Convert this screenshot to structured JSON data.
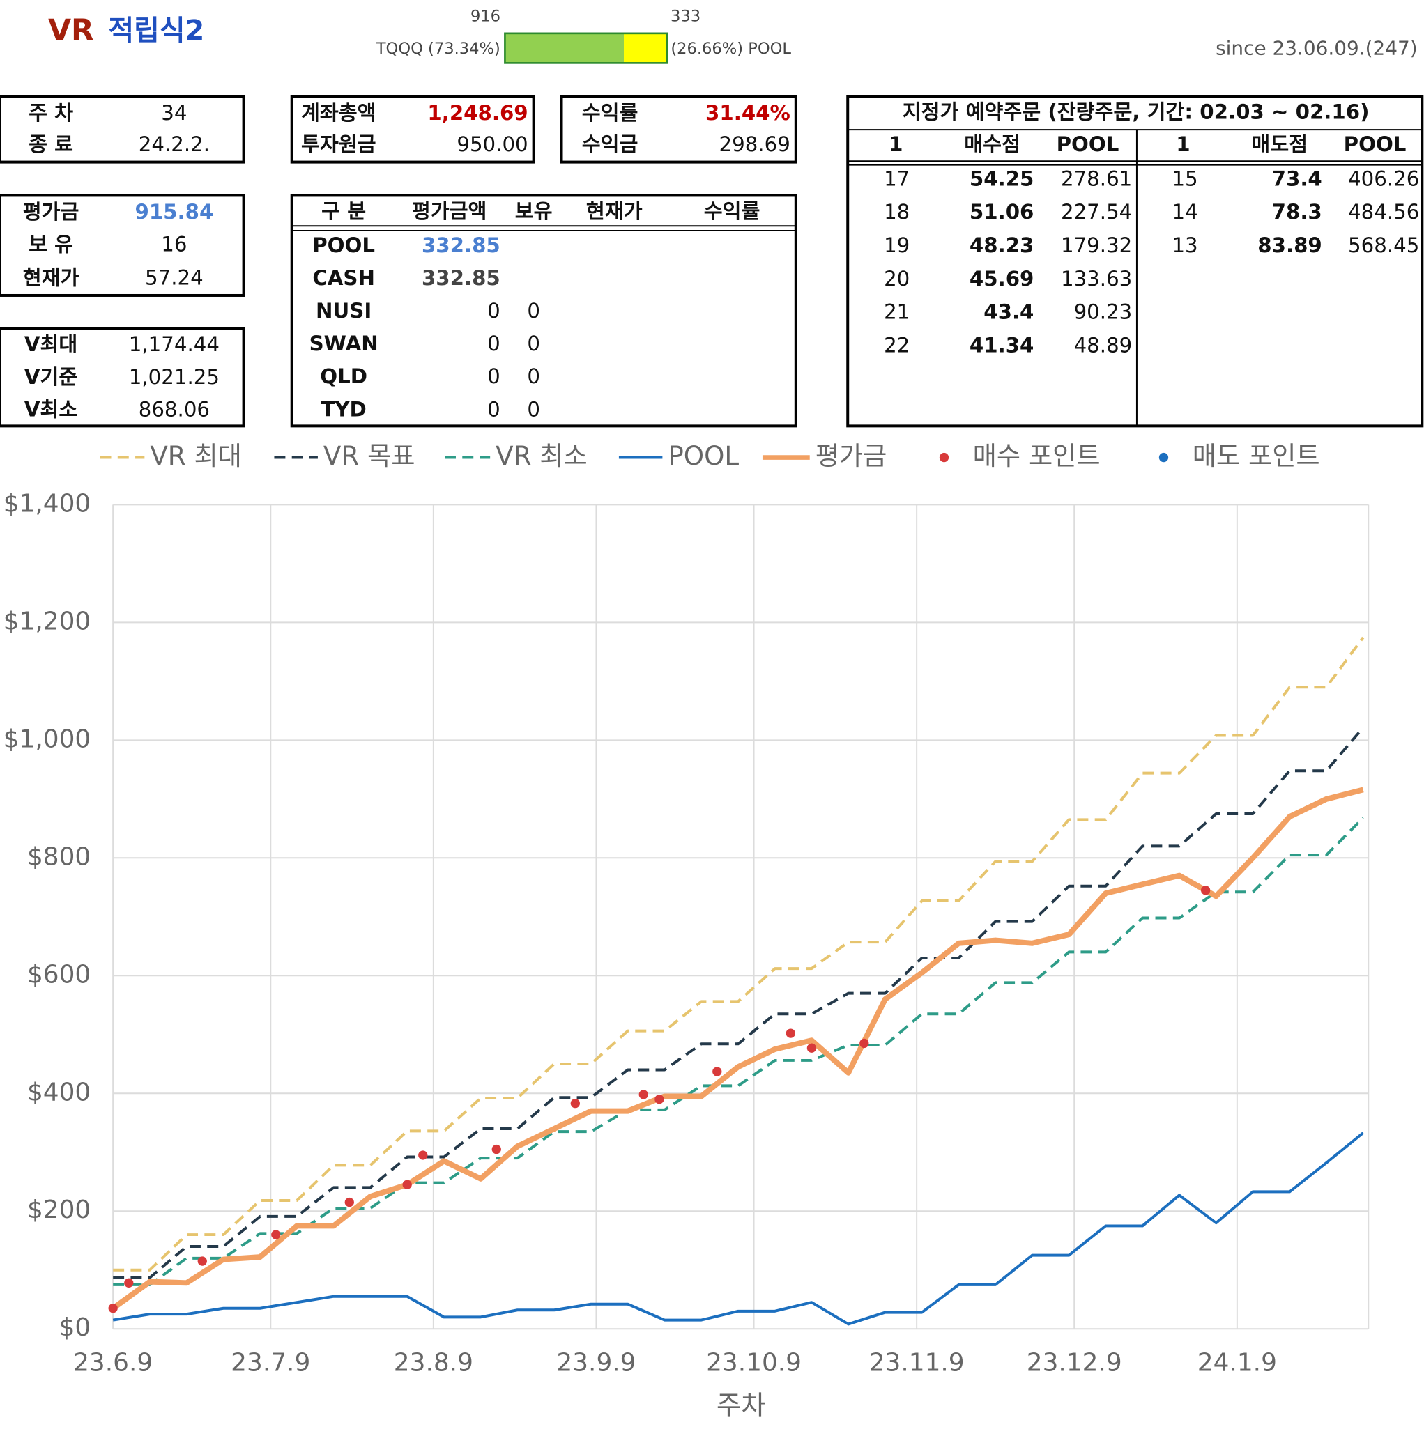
{
  "header": {
    "title_vr": "VR",
    "title_name": "적립식2",
    "since": "since 23.06.09.(247)"
  },
  "allocation": {
    "left_label": "TQQQ (73.34%)",
    "right_label": "(26.66%) POOL",
    "values": [
      916,
      333
    ]
  },
  "summary_boxes": [
    [
      [
        "주 차",
        "34"
      ],
      [
        "종 료",
        "24.2.2."
      ]
    ],
    [
      [
        "계좌총액",
        "1,248.69"
      ],
      [
        "투자원금",
        "950.00"
      ]
    ],
    [
      [
        "수익률",
        "31.44%"
      ],
      [
        "수익금",
        "298.69"
      ]
    ],
    [
      [
        "평가금",
        "915.84"
      ],
      [
        "보 유",
        "16"
      ],
      [
        "현재가",
        "57.24"
      ]
    ],
    [
      [
        "V최대",
        "1,174.44"
      ],
      [
        "V기준",
        "1,021.25"
      ],
      [
        "V최소",
        "868.06"
      ]
    ]
  ],
  "holdings": {
    "headers": [
      "구 분",
      "평가금액",
      "보유",
      "현재가",
      "수익률"
    ],
    "rows": [
      [
        "POOL",
        "332.85"
      ],
      [
        "CASH",
        "332.85"
      ],
      [
        "NUSI",
        "0",
        "0"
      ],
      [
        "SWAN",
        "0",
        "0"
      ],
      [
        "QLD",
        "0",
        "0"
      ],
      [
        "TYD",
        "0",
        "0"
      ]
    ]
  },
  "orders": {
    "title": "지정가 예약주문 (잔량주문, 기간: 02.03 ~ 02.16)",
    "buy_headers": [
      "1",
      "매수점",
      "POOL"
    ],
    "sell_headers": [
      "1",
      "매도점",
      "POOL"
    ],
    "buy_rows": [
      [
        "17",
        "54.25",
        "278.61"
      ],
      [
        "18",
        "51.06",
        "227.54"
      ],
      [
        "19",
        "48.23",
        "179.32"
      ],
      [
        "20",
        "45.69",
        "133.63"
      ],
      [
        "21",
        "43.4",
        "90.23"
      ],
      [
        "22",
        "41.34",
        "48.89"
      ]
    ],
    "sell_rows": [
      [
        "15",
        "73.4",
        "406.26"
      ],
      [
        "14",
        "78.3",
        "484.56"
      ],
      [
        "13",
        "83.89",
        "568.45"
      ]
    ]
  },
  "chart_data": {
    "type": "line",
    "xlabel": "주차",
    "grid": true,
    "x": [
      0,
      7,
      14,
      21,
      28,
      35,
      42,
      49,
      56,
      63,
      70,
      77,
      84,
      91,
      98,
      105,
      112,
      119,
      126,
      133,
      140,
      147,
      154,
      161,
      168,
      175,
      182,
      189,
      196,
      203,
      210,
      217,
      224,
      231,
      238
    ],
    "xlim": [
      0,
      239
    ],
    "xticks": [
      {
        "value": 0,
        "label": "23.6.9"
      },
      {
        "value": 30,
        "label": "23.7.9"
      },
      {
        "value": 61,
        "label": "23.8.9"
      },
      {
        "value": 92,
        "label": "23.9.9"
      },
      {
        "value": 122,
        "label": "23.10.9"
      },
      {
        "value": 153,
        "label": "23.11.9"
      },
      {
        "value": 183,
        "label": "23.12.9"
      },
      {
        "value": 214,
        "label": "24.1.9"
      }
    ],
    "ylim": [
      0,
      1400
    ],
    "yticks": [
      {
        "value": 0,
        "label": "$0"
      },
      {
        "value": 200,
        "label": "$200"
      },
      {
        "value": 400,
        "label": "$400"
      },
      {
        "value": 600,
        "label": "$600"
      },
      {
        "value": 800,
        "label": "$800"
      },
      {
        "value": 1000,
        "label": "$1,000"
      },
      {
        "value": 1200,
        "label": "$1,200"
      },
      {
        "value": 1400,
        "label": "$1,400"
      }
    ],
    "series": [
      {
        "name": "VR 최대",
        "color": "#e6c46e",
        "dashed": true,
        "line_width": 3,
        "values": [
          100,
          100,
          160,
          160,
          218,
          218,
          278,
          278,
          336,
          336,
          392,
          392,
          450,
          450,
          506,
          506,
          556,
          556,
          612,
          612,
          657,
          657,
          727,
          727,
          794,
          794,
          865,
          865,
          944,
          944,
          1008,
          1008,
          1090,
          1090,
          1174.44
        ]
      },
      {
        "name": "VR 목표",
        "color": "#24394a",
        "dashed": true,
        "line_width": 3,
        "values": [
          87,
          87,
          140,
          140,
          191,
          191,
          240,
          240,
          292,
          292,
          340,
          340,
          393,
          393,
          440,
          440,
          484,
          484,
          535,
          535,
          570,
          570,
          630,
          630,
          692,
          692,
          752,
          752,
          820,
          820,
          875,
          875,
          948,
          948,
          1021.25
        ]
      },
      {
        "name": "VR 최소",
        "color": "#2e9c88",
        "dashed": true,
        "line_width": 3,
        "values": [
          75,
          75,
          120,
          120,
          162,
          162,
          205,
          205,
          248,
          248,
          290,
          290,
          335,
          335,
          372,
          372,
          413,
          413,
          456,
          456,
          482,
          482,
          535,
          535,
          588,
          588,
          640,
          640,
          698,
          698,
          742,
          742,
          805,
          805,
          868.06
        ]
      },
      {
        "name": "POOL",
        "color": "#1c6fbf",
        "dashed": false,
        "line_width": 3,
        "values": [
          15,
          25,
          25,
          35,
          35,
          45,
          55,
          55,
          55,
          20,
          20,
          32,
          32,
          42,
          42,
          15,
          15,
          30,
          30,
          45,
          8,
          28,
          28,
          75,
          75,
          125,
          125,
          175,
          175,
          227,
          180,
          233,
          233,
          282,
          332.85
        ]
      },
      {
        "name": "평가금",
        "color": "#f2a062",
        "dashed": false,
        "line_width": 6,
        "values": [
          35,
          80,
          78,
          118,
          122,
          175,
          175,
          225,
          245,
          285,
          255,
          310,
          340,
          370,
          370,
          395,
          395,
          445,
          475,
          490,
          435,
          560,
          605,
          655,
          660,
          655,
          670,
          740,
          755,
          770,
          735,
          800,
          870,
          900,
          915.84
        ]
      },
      {
        "name": "매수 포인트",
        "type": "scatter",
        "color": "#d83a3a",
        "x": [
          0,
          3,
          17,
          31,
          45,
          56,
          59,
          73,
          88,
          101,
          104,
          115,
          129,
          133,
          143,
          208
        ],
        "values": [
          35,
          78,
          115,
          160,
          215,
          245,
          295,
          305,
          383,
          398,
          390,
          437,
          502,
          477,
          485,
          745
        ]
      },
      {
        "name": "매도 포인트",
        "type": "scatter",
        "color": "#1c6fbf",
        "x": [],
        "values": []
      }
    ]
  }
}
